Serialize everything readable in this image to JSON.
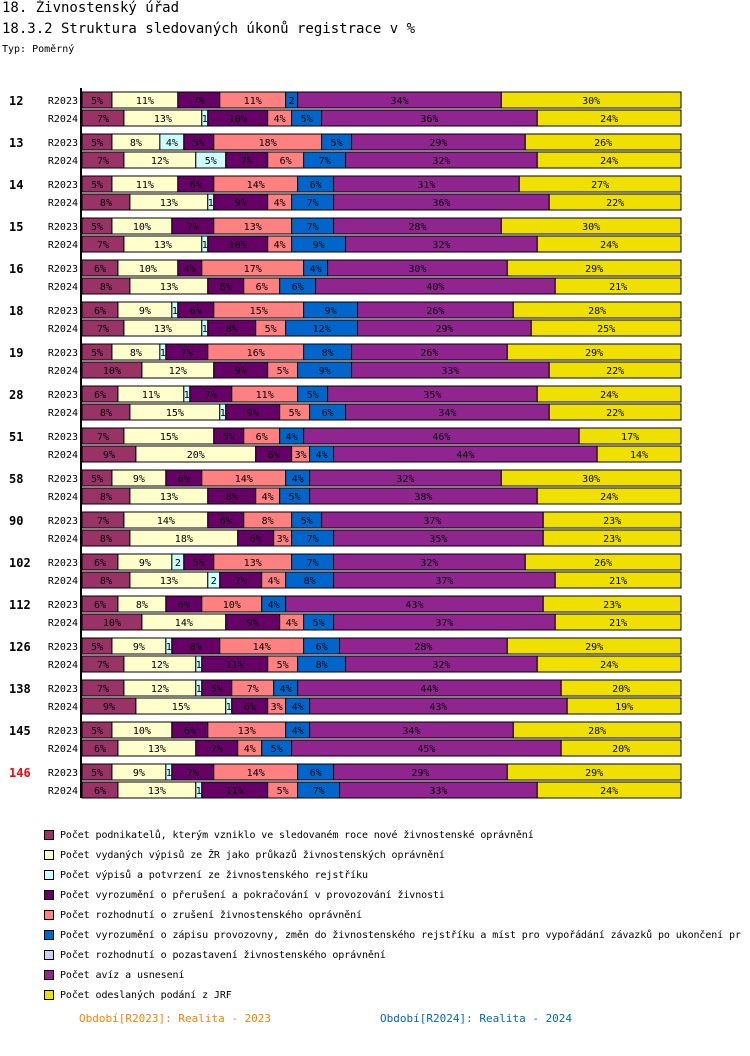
{
  "header": {
    "title": "18. Živnostenský úřad",
    "subtitle": "18.3.2 Struktura sledovaných úkonů registrace v %",
    "type_label": "Typ: Poměrný"
  },
  "colors": [
    "#993366",
    "#ffffcc",
    "#ccffff",
    "#660066",
    "#ff8080",
    "#0066cc",
    "#ccccff",
    "#902590",
    "#f0e000"
  ],
  "chart_data": {
    "type": "bar",
    "orientation": "horizontal",
    "stacked": true,
    "normalized": true,
    "unit": "%",
    "series_names": [
      "Počet podnikatelů, kterým vzniklo ve sledovaném roce nové živnostenské oprávnění",
      "Počet vydaných výpisů ze ŽR jako průkazů živnostenských oprávnění",
      "Počet výpisů a potvrzení ze živnostenského rejstříku",
      "Počet vyrozumění o přerušení a pokračování v provozování živnosti",
      "Počet rozhodnutí o zrušení živnostenského oprávnění",
      "Počet vyrozumění o zápisu provozovny, změn do živnostenského rejstříku a míst pro vypořádání závazků po ukončení pr",
      "Počet rozhodnutí o pozastavení živnostenského oprávnění",
      "Počet avíz a usnesení",
      "Počet odeslaných podání z JRF"
    ],
    "highlight_group": "146",
    "groups": [
      {
        "label": "12",
        "rows": [
          {
            "period": "R2023",
            "values": [
              5,
              11,
              0,
              7,
              11,
              2,
              0,
              34,
              30
            ]
          },
          {
            "period": "R2024",
            "values": [
              7,
              13,
              1,
              10,
              4,
              5,
              0,
              36,
              24
            ]
          }
        ]
      },
      {
        "label": "13",
        "rows": [
          {
            "period": "R2023",
            "values": [
              5,
              8,
              4,
              5,
              18,
              5,
              0,
              29,
              26
            ]
          },
          {
            "period": "R2024",
            "values": [
              7,
              12,
              5,
              7,
              6,
              7,
              0,
              32,
              24
            ]
          }
        ]
      },
      {
        "label": "14",
        "rows": [
          {
            "period": "R2023",
            "values": [
              5,
              11,
              0,
              6,
              14,
              6,
              0,
              31,
              27
            ]
          },
          {
            "period": "R2024",
            "values": [
              8,
              13,
              1,
              9,
              4,
              7,
              0,
              36,
              22
            ]
          }
        ]
      },
      {
        "label": "15",
        "rows": [
          {
            "period": "R2023",
            "values": [
              5,
              10,
              0,
              7,
              13,
              7,
              0,
              28,
              30
            ]
          },
          {
            "period": "R2024",
            "values": [
              7,
              13,
              1,
              10,
              4,
              9,
              0,
              32,
              24
            ]
          }
        ]
      },
      {
        "label": "16",
        "rows": [
          {
            "period": "R2023",
            "values": [
              6,
              10,
              0,
              4,
              17,
              4,
              0,
              30,
              29
            ]
          },
          {
            "period": "R2024",
            "values": [
              8,
              13,
              0,
              6,
              6,
              6,
              0,
              40,
              21
            ]
          }
        ]
      },
      {
        "label": "18",
        "rows": [
          {
            "period": "R2023",
            "values": [
              6,
              9,
              1,
              6,
              15,
              9,
              0,
              26,
              28
            ]
          },
          {
            "period": "R2024",
            "values": [
              7,
              13,
              1,
              8,
              5,
              12,
              0,
              29,
              25
            ]
          }
        ]
      },
      {
        "label": "19",
        "rows": [
          {
            "period": "R2023",
            "values": [
              5,
              8,
              1,
              7,
              16,
              8,
              0,
              26,
              29
            ]
          },
          {
            "period": "R2024",
            "values": [
              10,
              12,
              0,
              9,
              5,
              9,
              0,
              33,
              22
            ]
          }
        ]
      },
      {
        "label": "28",
        "rows": [
          {
            "period": "R2023",
            "values": [
              6,
              11,
              1,
              7,
              11,
              5,
              0,
              35,
              24
            ]
          },
          {
            "period": "R2024",
            "values": [
              8,
              15,
              1,
              9,
              5,
              6,
              0,
              34,
              22
            ]
          }
        ]
      },
      {
        "label": "51",
        "rows": [
          {
            "period": "R2023",
            "values": [
              7,
              15,
              0,
              5,
              6,
              4,
              0,
              46,
              17
            ]
          },
          {
            "period": "R2024",
            "values": [
              9,
              20,
              0,
              6,
              3,
              4,
              0,
              44,
              14
            ]
          }
        ]
      },
      {
        "label": "58",
        "rows": [
          {
            "period": "R2023",
            "values": [
              5,
              9,
              0,
              6,
              14,
              4,
              0,
              32,
              30
            ]
          },
          {
            "period": "R2024",
            "values": [
              8,
              13,
              0,
              8,
              4,
              5,
              0,
              38,
              24
            ]
          }
        ]
      },
      {
        "label": "90",
        "rows": [
          {
            "period": "R2023",
            "values": [
              7,
              14,
              0,
              6,
              8,
              5,
              0,
              37,
              23
            ]
          },
          {
            "period": "R2024",
            "values": [
              8,
              18,
              0,
              6,
              3,
              7,
              0,
              35,
              23
            ]
          }
        ]
      },
      {
        "label": "102",
        "rows": [
          {
            "period": "R2023",
            "values": [
              6,
              9,
              2,
              5,
              13,
              7,
              0,
              32,
              26
            ]
          },
          {
            "period": "R2024",
            "values": [
              8,
              13,
              2,
              7,
              4,
              8,
              0,
              37,
              21
            ]
          }
        ]
      },
      {
        "label": "112",
        "rows": [
          {
            "period": "R2023",
            "values": [
              6,
              8,
              0,
              6,
              10,
              4,
              0,
              43,
              23
            ]
          },
          {
            "period": "R2024",
            "values": [
              10,
              14,
              0,
              9,
              4,
              5,
              0,
              37,
              21
            ]
          }
        ]
      },
      {
        "label": "126",
        "rows": [
          {
            "period": "R2023",
            "values": [
              5,
              9,
              1,
              8,
              14,
              6,
              0,
              28,
              29
            ]
          },
          {
            "period": "R2024",
            "values": [
              7,
              12,
              1,
              11,
              5,
              8,
              0,
              32,
              24
            ]
          }
        ]
      },
      {
        "label": "138",
        "rows": [
          {
            "period": "R2023",
            "values": [
              7,
              12,
              1,
              5,
              7,
              4,
              0,
              44,
              20
            ]
          },
          {
            "period": "R2024",
            "values": [
              9,
              15,
              1,
              6,
              3,
              4,
              0,
              43,
              19
            ]
          }
        ]
      },
      {
        "label": "145",
        "rows": [
          {
            "period": "R2023",
            "values": [
              5,
              10,
              0,
              6,
              13,
              4,
              0,
              34,
              28
            ]
          },
          {
            "period": "R2024",
            "values": [
              6,
              13,
              0,
              7,
              4,
              5,
              0,
              45,
              20
            ]
          }
        ]
      },
      {
        "label": "146",
        "rows": [
          {
            "period": "R2023",
            "values": [
              5,
              9,
              1,
              7,
              14,
              6,
              0,
              29,
              29
            ]
          },
          {
            "period": "R2024",
            "values": [
              6,
              13,
              1,
              11,
              5,
              7,
              0,
              33,
              24
            ]
          }
        ]
      }
    ]
  },
  "footer": {
    "period_2023": "Období[R2023]: Realita - 2023",
    "period_2024": "Období[R2024]: Realita - 2024",
    "color_2023": "#ff8000",
    "color_2024": "#0066cc"
  }
}
